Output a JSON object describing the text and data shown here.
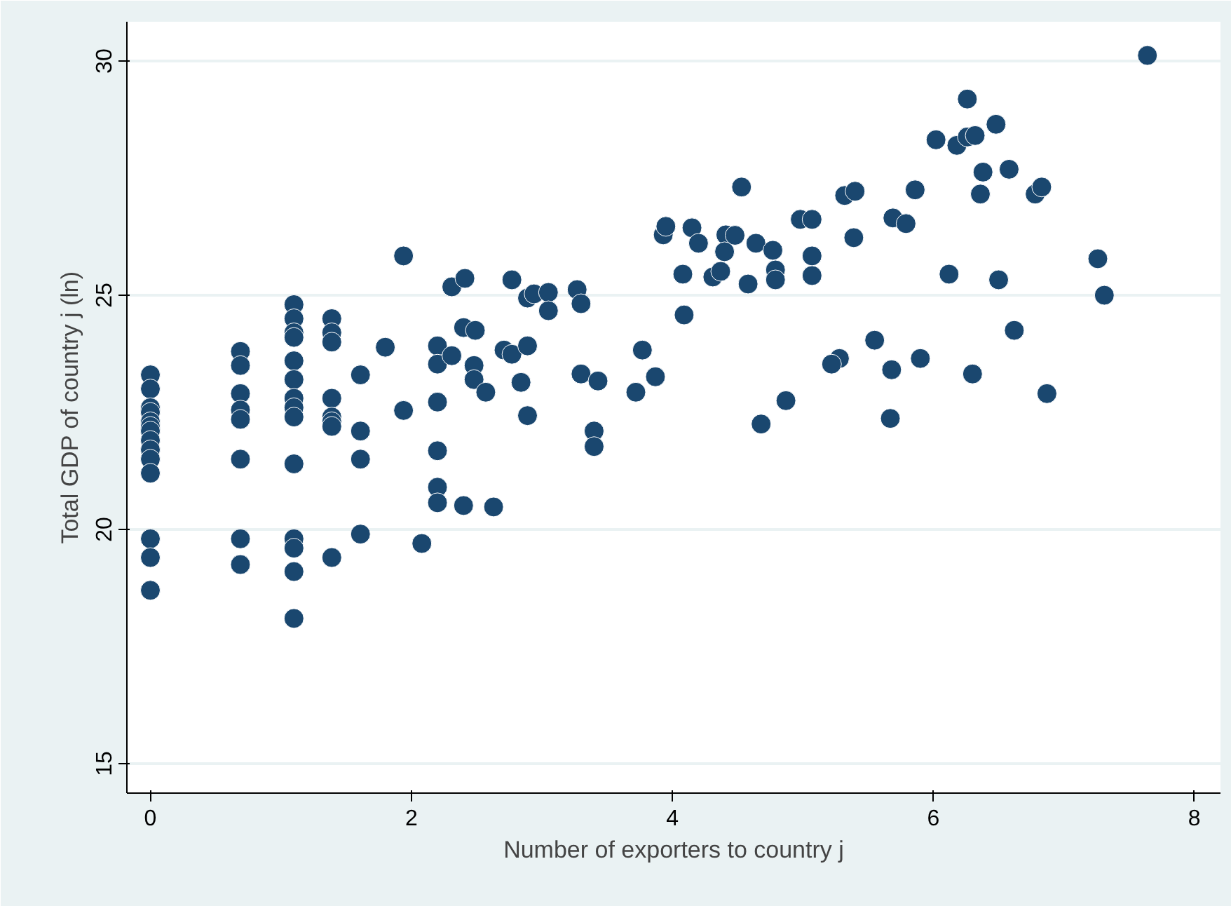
{
  "chart_data": {
    "type": "scatter",
    "xlabel": "Number of exporters to country j",
    "ylabel": "Total GDP of country j (ln)",
    "x": [
      0,
      0,
      0,
      0,
      0,
      0,
      0,
      0,
      0,
      0,
      0,
      0,
      0,
      0,
      0.69,
      0.69,
      0.69,
      0.69,
      0.69,
      0.69,
      0.69,
      0.69,
      1.1,
      1.1,
      1.1,
      1.1,
      1.1,
      1.1,
      1.1,
      1.1,
      1.1,
      1.1,
      1.1,
      1.1,
      1.1,
      1.1,
      1.39,
      1.39,
      1.39,
      1.39,
      1.39,
      1.39,
      1.39,
      1.39,
      1.61,
      1.61,
      1.61,
      1.61,
      2.2,
      2.2,
      2.2,
      2.2,
      2.2,
      2.2,
      1.94,
      2.31,
      2.41,
      2.77,
      2.89,
      2.94,
      3.05,
      3.05,
      3.27,
      3.3,
      2.4,
      2.49,
      1.8,
      2.31,
      2.48,
      2.48,
      2.57,
      2.71,
      2.77,
      2.89,
      2.84,
      2.89,
      3.3,
      3.43,
      3.72,
      3.77,
      3.87,
      3.4,
      3.4,
      1.94,
      2.4,
      2.63,
      2.08,
      3.93,
      3.95,
      4.08,
      4.09,
      4.53,
      4.15,
      4.2,
      4.41,
      4.48,
      4.4,
      4.64,
      4.77,
      4.98,
      5.07,
      5.32,
      5.4,
      5.86,
      5.69,
      5.79,
      5.39,
      5.07,
      5.07,
      4.79,
      4.79,
      4.31,
      4.37,
      4.58,
      6.12,
      4.87,
      4.68,
      5.55,
      5.28,
      5.22,
      5.68,
      5.9,
      5.67,
      7.64,
      6.26,
      6.48,
      6.02,
      6.18,
      6.26,
      6.32,
      6.38,
      6.58,
      6.36,
      6.78,
      6.83,
      7.26,
      7.31,
      6.5,
      6.62,
      6.3,
      6.87
    ],
    "values": [
      23.3,
      23.0,
      22.6,
      22.5,
      22.3,
      22.2,
      22.1,
      21.9,
      21.7,
      21.5,
      21.2,
      19.8,
      19.4,
      18.7,
      23.8,
      23.5,
      22.9,
      22.55,
      22.35,
      21.5,
      19.8,
      19.25,
      24.8,
      24.5,
      24.2,
      24.1,
      23.6,
      23.2,
      22.8,
      22.6,
      22.4,
      21.4,
      19.8,
      19.6,
      19.1,
      18.1,
      24.5,
      24.2,
      24.0,
      22.8,
      22.4,
      22.3,
      22.2,
      19.4,
      23.3,
      22.1,
      21.5,
      19.9,
      23.92,
      23.53,
      22.72,
      21.68,
      20.9,
      20.57,
      25.84,
      25.18,
      25.36,
      25.33,
      24.94,
      25.03,
      25.06,
      24.67,
      25.12,
      24.82,
      24.31,
      24.25,
      23.89,
      23.71,
      23.5,
      23.2,
      22.93,
      23.83,
      23.74,
      23.92,
      23.14,
      22.43,
      23.32,
      23.17,
      22.93,
      23.83,
      23.26,
      22.1,
      21.77,
      22.54,
      20.51,
      20.48,
      19.7,
      26.29,
      26.47,
      25.45,
      24.58,
      27.31,
      26.44,
      26.11,
      26.29,
      26.28,
      25.93,
      26.11,
      25.96,
      26.62,
      26.62,
      27.13,
      27.22,
      27.25,
      26.65,
      26.53,
      26.23,
      25.84,
      25.42,
      25.54,
      25.33,
      25.39,
      25.51,
      25.24,
      25.45,
      22.75,
      22.25,
      24.04,
      23.65,
      23.53,
      23.41,
      23.65,
      22.37,
      30.12,
      29.19,
      28.65,
      28.32,
      28.2,
      28.38,
      28.41,
      27.63,
      27.69,
      27.16,
      27.16,
      27.31,
      25.78,
      25.0,
      25.33,
      24.25,
      23.32,
      22.9
    ],
    "color": "#1a476f",
    "marker": "circle",
    "xlim": [
      -0.18,
      8.2
    ],
    "ylim": [
      14.37,
      30.84
    ],
    "xticks": [
      0,
      2,
      4,
      6,
      8
    ],
    "yticks": [
      15,
      20,
      25,
      30
    ],
    "grid": "y"
  }
}
